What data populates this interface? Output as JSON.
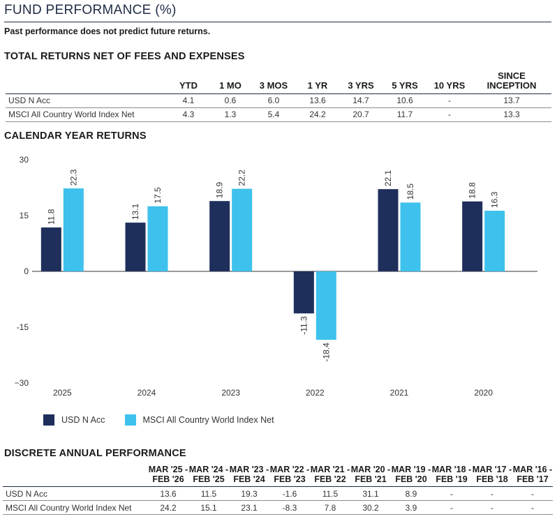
{
  "header": {
    "title": "FUND PERFORMANCE (%)",
    "disclaimer": "Past performance does not predict future returns."
  },
  "returns": {
    "title": "TOTAL RETURNS NET OF FEES AND EXPENSES",
    "columns": [
      "YTD",
      "1 MO",
      "3 MOS",
      "1 YR",
      "3 YRS",
      "5 YRS",
      "10 YRS",
      "SINCE INCEPTION"
    ],
    "rows": [
      {
        "label": "USD N Acc",
        "values": [
          "4.1",
          "0.6",
          "6.0",
          "13.6",
          "14.7",
          "10.6",
          "-",
          "13.7"
        ]
      },
      {
        "label": "MSCI All Country World Index Net",
        "values": [
          "4.3",
          "1.3",
          "5.4",
          "24.2",
          "20.7",
          "11.7",
          "-",
          "13.3"
        ]
      }
    ]
  },
  "calendar": {
    "title": "CALENDAR YEAR RETURNS"
  },
  "chart_data": {
    "type": "bar",
    "title": "CALENDAR YEAR RETURNS",
    "categories": [
      "2025",
      "2024",
      "2023",
      "2022",
      "2021",
      "2020"
    ],
    "series": [
      {
        "name": "USD N Acc",
        "color": "#1e2f5c",
        "values": [
          11.8,
          13.1,
          18.9,
          -11.3,
          22.1,
          18.8
        ]
      },
      {
        "name": "MSCI All Country World Index Net",
        "color": "#3ec1ec",
        "values": [
          22.3,
          17.5,
          22.2,
          -18.4,
          18.5,
          16.3
        ]
      }
    ],
    "ylim": [
      -30,
      30
    ],
    "yticks": [
      30,
      15,
      0,
      -15,
      -30
    ],
    "ytick_labels": [
      "30",
      "15",
      "0",
      "-15",
      "−30"
    ],
    "xlabel": "",
    "ylabel": "",
    "legend": "bottom-left"
  },
  "discrete": {
    "title": "DISCRETE ANNUAL PERFORMANCE",
    "columns": [
      {
        "line1": "MAR '25 -",
        "line2": "FEB '26"
      },
      {
        "line1": "MAR '24 -",
        "line2": "FEB '25"
      },
      {
        "line1": "MAR '23 -",
        "line2": "FEB '24"
      },
      {
        "line1": "MAR '22 -",
        "line2": "FEB '23"
      },
      {
        "line1": "MAR '21 -",
        "line2": "FEB '22"
      },
      {
        "line1": "MAR '20 -",
        "line2": "FEB '21"
      },
      {
        "line1": "MAR '19 -",
        "line2": "FEB '20"
      },
      {
        "line1": "MAR '18 -",
        "line2": "FEB '19"
      },
      {
        "line1": "MAR '17 -",
        "line2": "FEB '18"
      },
      {
        "line1": "MAR '16 -",
        "line2": "FEB '17"
      }
    ],
    "rows": [
      {
        "label": "USD N Acc",
        "values": [
          "13.6",
          "11.5",
          "19.3",
          "-1.6",
          "11.5",
          "31.1",
          "8.9",
          "-",
          "-",
          "-"
        ]
      },
      {
        "label": "MSCI All Country World Index Net",
        "values": [
          "24.2",
          "15.1",
          "23.1",
          "-8.3",
          "7.8",
          "30.2",
          "3.9",
          "-",
          "-",
          "-"
        ]
      }
    ]
  }
}
